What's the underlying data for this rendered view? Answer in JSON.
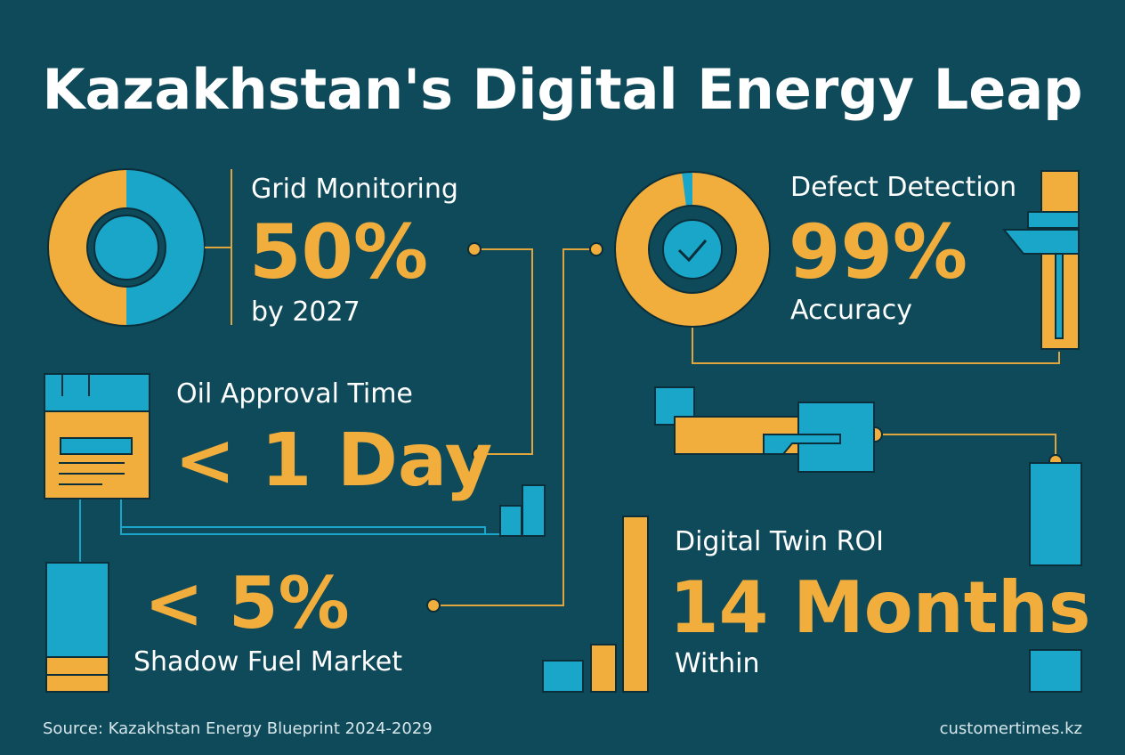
{
  "header": {
    "title": "Kazakhstan's Digital Energy Leap"
  },
  "stats": [
    {
      "label": "Grid Monitoring",
      "value": "50%",
      "note": "by 2027"
    },
    {
      "label": "Defect Detection",
      "value": "99%",
      "note": "Accuracy"
    },
    {
      "label": "Oil Approval Time",
      "value": "< 1 Day"
    },
    {
      "value": "< 5%",
      "note": "Shadow Fuel Market"
    },
    {
      "label": "Digital Twin ROI",
      "value": "14 Months",
      "note": "Within"
    }
  ],
  "footer": {
    "source": "Source: Kazakhstan Energy Blueprint 2024-2029",
    "site": "customertimes.kz"
  }
}
